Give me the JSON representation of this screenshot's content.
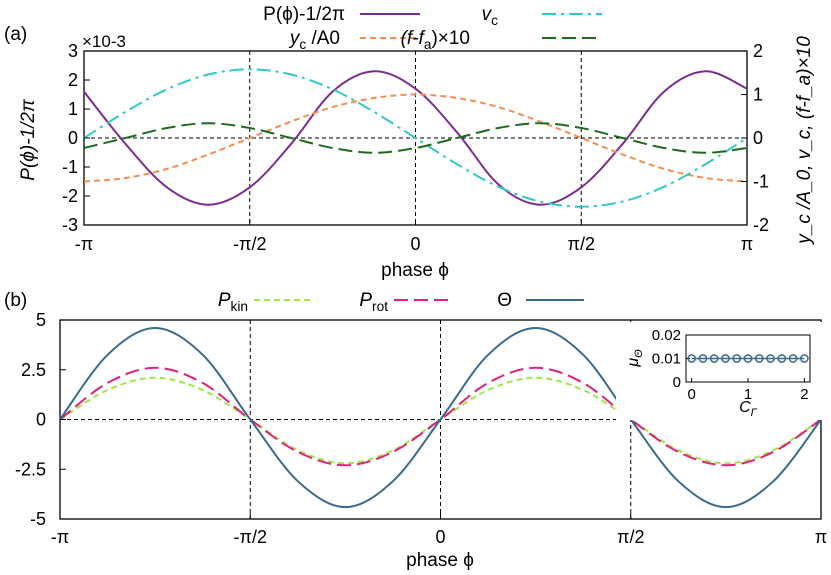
{
  "chart_data": [
    {
      "type": "line",
      "panel_label": "(a)",
      "xlabel": "phase ϕ",
      "ylabel_left": "P(ϕ)-1/2π",
      "ylabel_right": "y_c /A_0, v_c, (f-f_a)×10",
      "y_exponent": "×10-3",
      "xlim": [
        -3.1416,
        3.1416
      ],
      "ylim_left": [
        -3,
        3
      ],
      "ylim_right": [
        -2,
        2
      ],
      "xticks": [
        {
          "value": -3.1416,
          "label": "-π"
        },
        {
          "value": -1.5708,
          "label": "-π/2"
        },
        {
          "value": 0,
          "label": "0"
        },
        {
          "value": 1.5708,
          "label": "π/2"
        },
        {
          "value": 3.1416,
          "label": "π"
        }
      ],
      "yticks_left": [
        "-3",
        "-2",
        "-1",
        "0",
        "1",
        "2",
        "3"
      ],
      "yticks_right": [
        "-2",
        "-1",
        "0",
        "1",
        "2"
      ],
      "vlines": [
        -1.5708,
        0,
        1.5708
      ],
      "hline": 0,
      "series": [
        {
          "name": "P(ϕ)-1/2π",
          "axis": "left",
          "color": "#7b2d8e",
          "dash": "solid",
          "x": [
            -3.1416,
            -2.7489,
            -2.3562,
            -1.9635,
            -1.5708,
            -1.1781,
            -0.7854,
            -0.3927,
            0,
            0.3927,
            0.7854,
            1.1781,
            1.5708,
            1.9635,
            2.3562,
            2.7489,
            3.1416
          ],
          "values": [
            1.6,
            -0.2,
            -1.7,
            -2.3,
            -1.7,
            -0.2,
            1.6,
            2.3,
            1.7,
            0.2,
            -1.6,
            -2.3,
            -1.7,
            -0.2,
            1.6,
            2.3,
            1.7
          ]
        },
        {
          "name": "y_c /A_0",
          "axis": "right",
          "color": "#f28e55",
          "dash": "short",
          "x": [
            -3.1416,
            -2.7489,
            -2.3562,
            -1.9635,
            -1.5708,
            -1.1781,
            -0.7854,
            -0.3927,
            0,
            0.3927,
            0.7854,
            1.1781,
            1.5708,
            1.9635,
            2.3562,
            2.7489,
            3.1416
          ],
          "values": [
            -1.0,
            -0.92,
            -0.71,
            -0.38,
            0,
            0.38,
            0.71,
            0.92,
            1.0,
            0.92,
            0.71,
            0.38,
            0,
            -0.38,
            -0.71,
            -0.92,
            -1.0
          ]
        },
        {
          "name": "v_c",
          "axis": "right",
          "color": "#2ec9c9",
          "dash": "dashdot",
          "x": [
            -3.1416,
            -2.7489,
            -2.3562,
            -1.9635,
            -1.5708,
            -1.1781,
            -0.7854,
            -0.3927,
            0,
            0.3927,
            0.7854,
            1.1781,
            1.5708,
            1.9635,
            2.3562,
            2.7489,
            3.1416
          ],
          "values": [
            0,
            0.6,
            1.12,
            1.46,
            1.58,
            1.46,
            1.12,
            0.6,
            0,
            -0.6,
            -1.12,
            -1.46,
            -1.58,
            -1.46,
            -1.12,
            -0.6,
            0
          ]
        },
        {
          "name": "(f-f_a)×10",
          "axis": "right",
          "color": "#1e6b1e",
          "dash": "long",
          "x": [
            -3.1416,
            -2.7489,
            -2.3562,
            -1.9635,
            -1.5708,
            -1.1781,
            -0.7854,
            -0.3927,
            0,
            0.3927,
            0.7854,
            1.1781,
            1.5708,
            1.9635,
            2.3562,
            2.7489,
            3.1416
          ],
          "values": [
            -0.23,
            0.0,
            0.23,
            0.34,
            0.23,
            0.0,
            -0.23,
            -0.34,
            -0.23,
            0.0,
            0.23,
            0.34,
            0.23,
            0.0,
            -0.23,
            -0.34,
            -0.23
          ]
        }
      ]
    },
    {
      "type": "line",
      "panel_label": "(b)",
      "xlabel": "phase ϕ",
      "xlim": [
        -3.1416,
        3.1416
      ],
      "ylim": [
        -5,
        5
      ],
      "xticks": [
        {
          "value": -3.1416,
          "label": "-π"
        },
        {
          "value": -1.5708,
          "label": "-π/2"
        },
        {
          "value": 0,
          "label": "0"
        },
        {
          "value": 1.5708,
          "label": "π/2"
        },
        {
          "value": 3.1416,
          "label": "π"
        }
      ],
      "yticks": [
        "-5",
        "-2.5",
        "0",
        "2.5",
        "5"
      ],
      "vlines": [
        -1.5708,
        0,
        1.5708
      ],
      "hline": 0,
      "series": [
        {
          "name": "P_kin",
          "color": "#9be845",
          "dash": "short",
          "x": [
            -3.1416,
            -2.7489,
            -2.3562,
            -1.9635,
            -1.5708,
            -1.1781,
            -0.7854,
            -0.3927,
            0,
            0.3927,
            0.7854,
            1.1781,
            1.5708,
            1.9635,
            2.3562,
            2.7489,
            3.1416
          ],
          "values": [
            0,
            1.48,
            2.1,
            1.48,
            0,
            -1.55,
            -2.2,
            -1.55,
            0,
            1.48,
            2.1,
            1.48,
            0,
            -1.55,
            -2.2,
            -1.55,
            0
          ]
        },
        {
          "name": "P_rot",
          "color": "#e0207a",
          "dash": "long",
          "x": [
            -3.1416,
            -2.7489,
            -2.3562,
            -1.9635,
            -1.5708,
            -1.1781,
            -0.7854,
            -0.3927,
            0,
            0.3927,
            0.7854,
            1.1781,
            1.5708,
            1.9635,
            2.3562,
            2.7489,
            3.1416
          ],
          "values": [
            0,
            1.84,
            2.6,
            1.84,
            0,
            -1.63,
            -2.3,
            -1.63,
            0,
            1.84,
            2.6,
            1.84,
            0,
            -1.63,
            -2.3,
            -1.63,
            0
          ]
        },
        {
          "name": "Θ",
          "color": "#3a6a8c",
          "dash": "solid",
          "x": [
            -3.1416,
            -2.7489,
            -2.3562,
            -1.9635,
            -1.5708,
            -1.1781,
            -0.7854,
            -0.3927,
            0,
            0.3927,
            0.7854,
            1.1781,
            1.5708,
            1.9635,
            2.3562,
            2.7489,
            3.1416
          ],
          "values": [
            0,
            3.25,
            4.6,
            3.25,
            0,
            -3.1,
            -4.4,
            -3.1,
            0,
            3.25,
            4.6,
            3.25,
            0,
            -3.1,
            -4.4,
            -3.1,
            0
          ]
        }
      ],
      "inset": {
        "type": "scatter",
        "xlabel": "C_Γ",
        "ylabel": "μ_Θ",
        "xlim": [
          -0.1,
          2.1
        ],
        "ylim": [
          0,
          0.02
        ],
        "xticks": [
          "0",
          "1",
          "2"
        ],
        "yticks": [
          "0",
          "0.01",
          "0.02"
        ],
        "color": "#3a6a8c",
        "x": [
          0,
          0.2,
          0.4,
          0.6,
          0.8,
          1.0,
          1.2,
          1.4,
          1.6,
          1.8,
          2.0
        ],
        "values": [
          0.01,
          0.01,
          0.01,
          0.01,
          0.01,
          0.01,
          0.01,
          0.01,
          0.01,
          0.01,
          0.01
        ]
      }
    }
  ]
}
